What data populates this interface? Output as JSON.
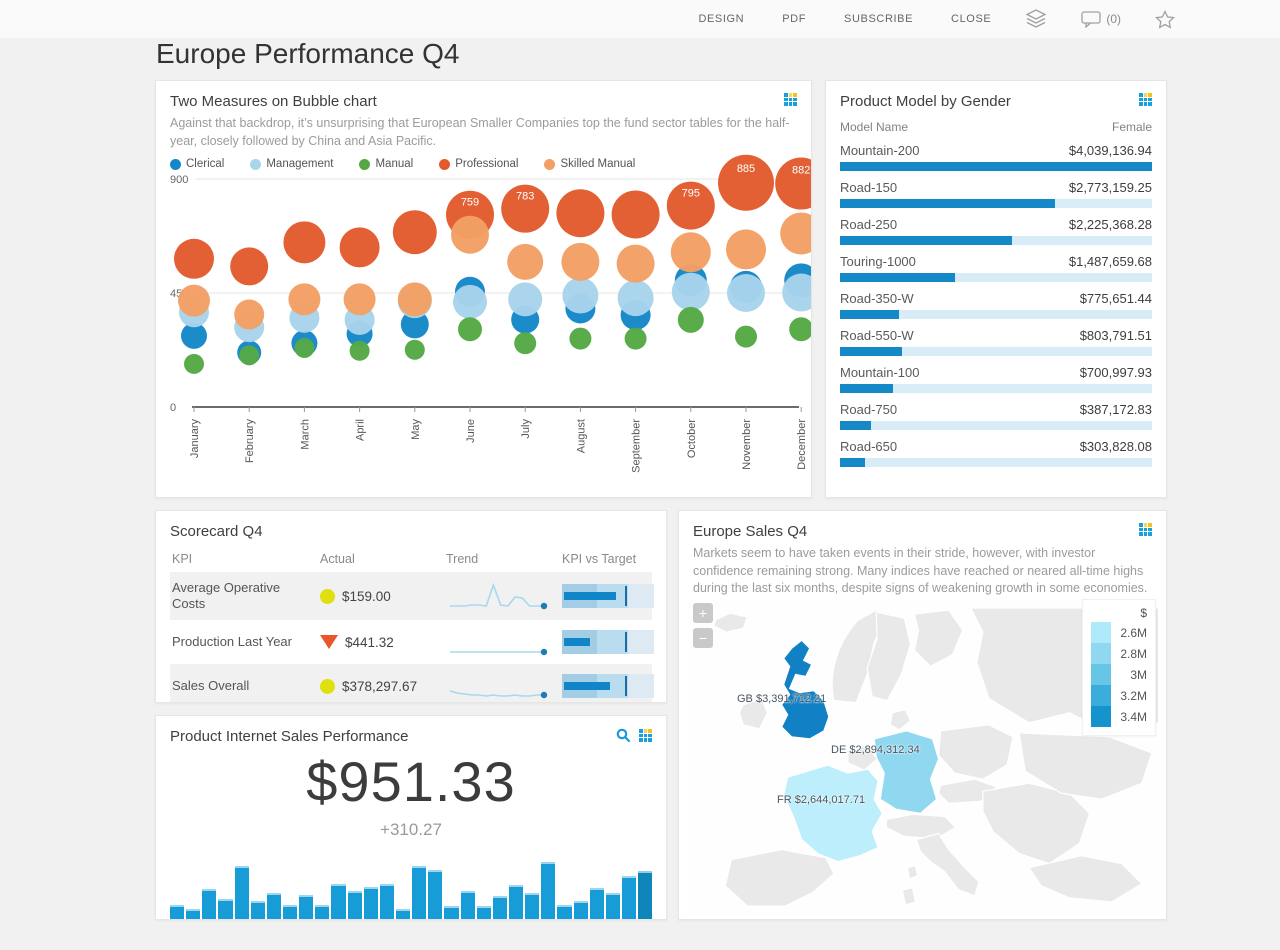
{
  "topbar": {
    "menu": [
      "DESIGN",
      "PDF",
      "SUBSCRIBE",
      "CLOSE"
    ],
    "comment_count": "(0)",
    "icons": [
      "layers-icon",
      "comment-icon",
      "star-icon"
    ]
  },
  "page_title": "Europe Performance Q4",
  "bubble_panel": {
    "title": "Two Measures on Bubble chart",
    "description": "Against that backdrop, it’s unsurprising that European Smaller Companies top the fund sector tables for the half-year, closely followed by China and Asia Pacific.",
    "chart_data": {
      "type": "scatter",
      "x": [
        "January",
        "February",
        "March",
        "April",
        "May",
        "June",
        "July",
        "August",
        "September",
        "October",
        "November",
        "December"
      ],
      "ylim": [
        0,
        900
      ],
      "yticks": [
        0,
        450,
        900
      ],
      "legend_position": "top",
      "series": [
        {
          "name": "Clerical",
          "color": "#1587c8",
          "values": [
            281,
            215,
            252,
            289,
            326,
            455,
            345,
            389,
            363,
            500,
            474,
            500
          ],
          "radii": [
            13,
            12,
            13,
            13,
            14,
            15,
            14,
            15,
            15,
            16,
            16,
            17
          ],
          "labels": {}
        },
        {
          "name": "Management",
          "color": "#a8d4ec",
          "values": [
            374,
            315,
            352,
            344,
            418,
            415,
            425,
            440,
            430,
            455,
            450,
            452
          ],
          "radii": [
            15,
            15,
            15,
            15,
            17,
            17,
            17,
            18,
            18,
            19,
            19,
            19
          ],
          "labels": {}
        },
        {
          "name": "Manual",
          "color": "#55a945",
          "values": [
            170,
            204,
            233,
            222,
            226,
            307,
            252,
            270,
            270,
            344,
            278,
            307
          ],
          "radii": [
            10,
            10,
            10,
            10,
            10,
            12,
            11,
            11,
            11,
            13,
            11,
            12
          ],
          "labels": {}
        },
        {
          "name": "Professional",
          "color": "#e25b2e",
          "values": [
            585,
            555,
            650,
            630,
            690,
            759,
            783,
            765,
            760,
            795,
            885,
            882
          ],
          "radii": [
            20,
            19,
            21,
            20,
            22,
            24,
            24,
            24,
            24,
            24,
            28,
            26
          ],
          "labels": {
            "5": "759",
            "6": "783",
            "9": "795",
            "10": "885",
            "11": "882"
          }
        },
        {
          "name": "Skilled Manual",
          "color": "#f3a064",
          "values": [
            420,
            365,
            425,
            425,
            425,
            680,
            573,
            573,
            566,
            611,
            622,
            685
          ],
          "radii": [
            16,
            15,
            16,
            16,
            17,
            19,
            18,
            19,
            19,
            20,
            20,
            21
          ],
          "labels": {}
        }
      ]
    }
  },
  "product_model": {
    "title": "Product Model by Gender",
    "columns": [
      "Model Name",
      "Female"
    ],
    "chart_data": {
      "type": "bar",
      "bar_color": "#1588c8",
      "track_color": "#d8ecf7",
      "rows": [
        {
          "name": "Mountain-200",
          "value": "$4,039,136.94",
          "pct": 100
        },
        {
          "name": "Road-150",
          "value": "$2,773,159.25",
          "pct": 69
        },
        {
          "name": "Road-250",
          "value": "$2,225,368.28",
          "pct": 55
        },
        {
          "name": "Touring-1000",
          "value": "$1,487,659.68",
          "pct": 37
        },
        {
          "name": "Road-350-W",
          "value": "$775,651.44",
          "pct": 19
        },
        {
          "name": "Road-550-W",
          "value": "$803,791.51",
          "pct": 20
        },
        {
          "name": "Mountain-100",
          "value": "$700,997.93",
          "pct": 17
        },
        {
          "name": "Road-750",
          "value": "$387,172.83",
          "pct": 10
        },
        {
          "name": "Road-650",
          "value": "$303,828.08",
          "pct": 8
        }
      ]
    }
  },
  "scorecard": {
    "title": "Scorecard Q4",
    "columns": [
      "KPI",
      "Actual",
      "Trend",
      "KPI vs Target"
    ],
    "status_colors": {
      "ok": "#e0df10",
      "alert": "#e8562c"
    },
    "rows": [
      {
        "kpi": "Average Operative Costs",
        "status": "circle",
        "actual": "$159.00",
        "trend": [
          3,
          3,
          3,
          4,
          4,
          3,
          24,
          4,
          3,
          12,
          11,
          3,
          3,
          3
        ],
        "bullet": {
          "measure": 57,
          "target": 68
        }
      },
      {
        "kpi": "Production Last Year",
        "status": "triangle-down",
        "actual": "$441.32",
        "trend": [
          3,
          3,
          3,
          3,
          3,
          3,
          3,
          3,
          3,
          3,
          3,
          3,
          3,
          3
        ],
        "bullet": {
          "measure": 28,
          "target": 68
        }
      },
      {
        "kpi": "Sales Overall",
        "status": "circle",
        "actual": "$378,297.67",
        "trend": [
          8,
          6,
          5,
          4,
          4,
          3,
          4,
          3,
          3,
          4,
          3,
          3,
          4,
          4
        ],
        "bullet": {
          "measure": 50,
          "target": 68
        }
      }
    ]
  },
  "sales_performance": {
    "title": "Product Internet Sales Performance",
    "value": "$951.33",
    "delta": "+310.27",
    "chart_data": {
      "type": "bar",
      "bar_color": "#189cd8",
      "last_bar_color": "#0e86ba",
      "values": [
        35,
        30,
        55,
        42,
        85,
        40,
        50,
        35,
        48,
        35,
        62,
        52,
        58,
        62,
        30,
        85,
        80,
        33,
        52,
        33,
        46,
        60,
        50,
        90,
        35,
        40,
        56,
        50,
        72,
        78
      ]
    }
  },
  "europe_sales": {
    "title": "Europe Sales Q4",
    "description": "Markets seem to have taken events in their stride, however, with investor confidence remaining strong. Many indices have reached or neared all-time highs during the last six months, despite signs of weakening growth in some economies.",
    "zoom_in": "+",
    "zoom_out": "−",
    "legend": {
      "header": "$",
      "items": [
        {
          "label": "2.6M",
          "color": "#aeeafa"
        },
        {
          "label": "2.8M",
          "color": "#8fd8f0"
        },
        {
          "label": "3M",
          "color": "#67c5e6"
        },
        {
          "label": "3.2M",
          "color": "#3aaddc"
        },
        {
          "label": "3.4M",
          "color": "#1493cc"
        }
      ]
    },
    "chart_data": {
      "type": "heatmap",
      "subtype": "choropleth-map",
      "countries": [
        {
          "code": "GB",
          "label": "GB $3,391,712.21",
          "color": "#1180c4"
        },
        {
          "code": "DE",
          "label": "DE $2,894,312.34",
          "color": "#8fd8f0"
        },
        {
          "code": "FR",
          "label": "FR $2,644,017.71",
          "color": "#bdeefb"
        }
      ]
    }
  }
}
